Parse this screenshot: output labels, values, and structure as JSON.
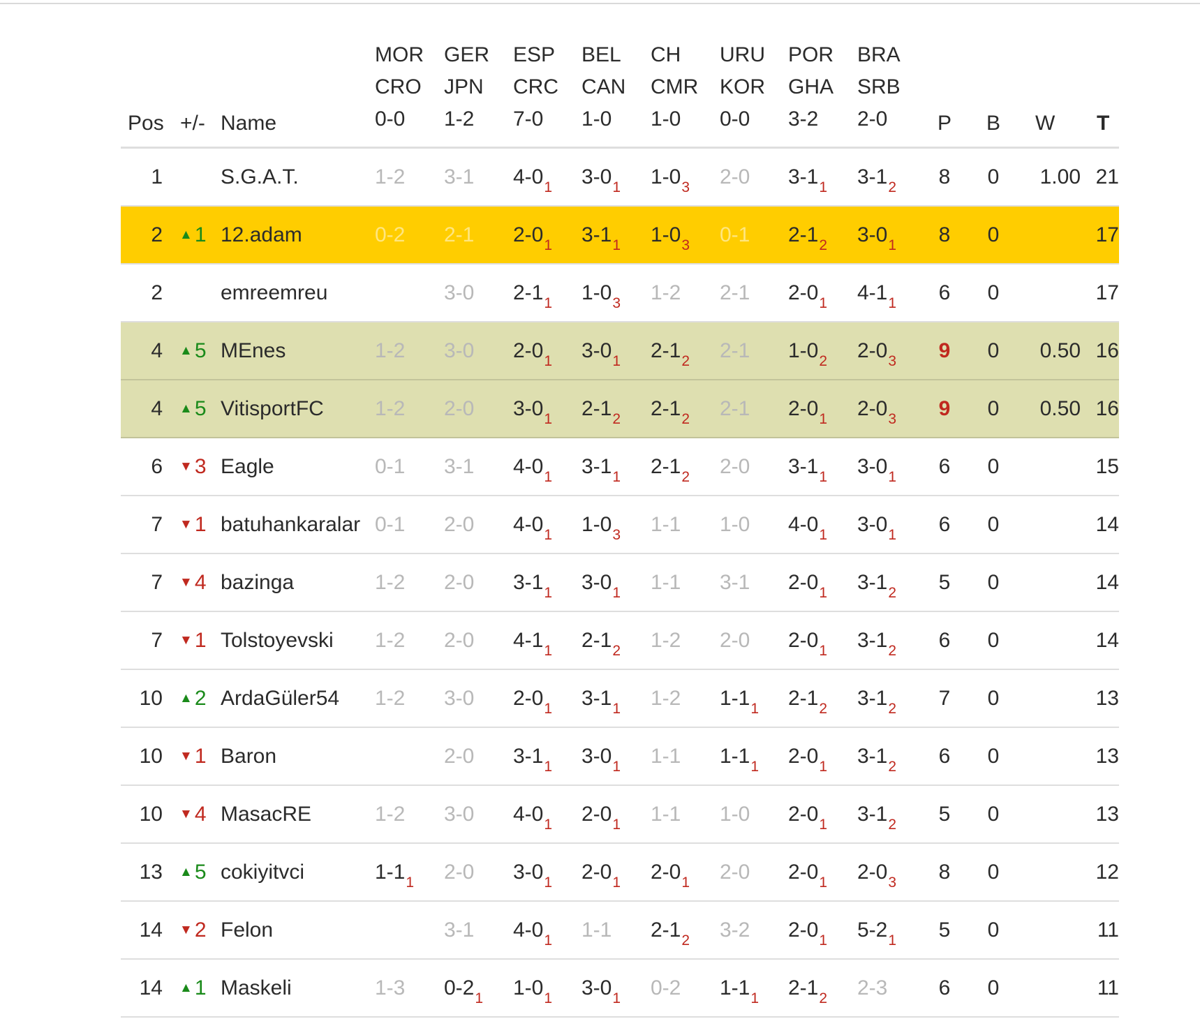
{
  "header": {
    "pos": "Pos",
    "change": "+/-",
    "name": "Name",
    "p": "P",
    "b": "B",
    "w": "W",
    "t": "T",
    "matches": [
      {
        "home": "MOR",
        "away": "CRO",
        "score": "0-0"
      },
      {
        "home": "GER",
        "away": "JPN",
        "score": "1-2"
      },
      {
        "home": "ESP",
        "away": "CRC",
        "score": "7-0"
      },
      {
        "home": "BEL",
        "away": "CAN",
        "score": "1-0"
      },
      {
        "home": "CH",
        "away": "CMR",
        "score": "1-0"
      },
      {
        "home": "URU",
        "away": "KOR",
        "score": "0-0"
      },
      {
        "home": "POR",
        "away": "GHA",
        "score": "3-2"
      },
      {
        "home": "BRA",
        "away": "SRB",
        "score": "2-0"
      }
    ]
  },
  "rows": [
    {
      "pos": "1",
      "dir": "",
      "chg": "",
      "name": "S.G.A.T.",
      "hl": "",
      "preds": [
        {
          "s": "1-2",
          "p": ""
        },
        {
          "s": "3-1",
          "p": ""
        },
        {
          "s": "4-0",
          "p": "1"
        },
        {
          "s": "3-0",
          "p": "1"
        },
        {
          "s": "1-0",
          "p": "3"
        },
        {
          "s": "2-0",
          "p": ""
        },
        {
          "s": "3-1",
          "p": "1"
        },
        {
          "s": "3-1",
          "p": "2"
        }
      ],
      "p": "8",
      "pRed": false,
      "b": "0",
      "w": "1.00",
      "t": "21"
    },
    {
      "pos": "2",
      "dir": "up",
      "chg": "1",
      "name": "12.adam",
      "hl": "gold",
      "preds": [
        {
          "s": "0-2",
          "p": ""
        },
        {
          "s": "2-1",
          "p": ""
        },
        {
          "s": "2-0",
          "p": "1"
        },
        {
          "s": "3-1",
          "p": "1"
        },
        {
          "s": "1-0",
          "p": "3"
        },
        {
          "s": "0-1",
          "p": ""
        },
        {
          "s": "2-1",
          "p": "2"
        },
        {
          "s": "3-0",
          "p": "1"
        }
      ],
      "p": "8",
      "pRed": false,
      "b": "0",
      "w": "",
      "t": "17"
    },
    {
      "pos": "2",
      "dir": "",
      "chg": "",
      "name": "emreemreu",
      "hl": "",
      "preds": [
        {
          "s": "",
          "p": ""
        },
        {
          "s": "3-0",
          "p": ""
        },
        {
          "s": "2-1",
          "p": "1"
        },
        {
          "s": "1-0",
          "p": "3"
        },
        {
          "s": "1-2",
          "p": ""
        },
        {
          "s": "2-1",
          "p": ""
        },
        {
          "s": "2-0",
          "p": "1"
        },
        {
          "s": "4-1",
          "p": "1"
        }
      ],
      "p": "6",
      "pRed": false,
      "b": "0",
      "w": "",
      "t": "17"
    },
    {
      "pos": "4",
      "dir": "up",
      "chg": "5",
      "name": "MEnes",
      "hl": "olive",
      "preds": [
        {
          "s": "1-2",
          "p": ""
        },
        {
          "s": "3-0",
          "p": ""
        },
        {
          "s": "2-0",
          "p": "1"
        },
        {
          "s": "3-0",
          "p": "1"
        },
        {
          "s": "2-1",
          "p": "2"
        },
        {
          "s": "2-1",
          "p": ""
        },
        {
          "s": "1-0",
          "p": "2"
        },
        {
          "s": "2-0",
          "p": "3"
        }
      ],
      "p": "9",
      "pRed": true,
      "b": "0",
      "w": "0.50",
      "t": "16"
    },
    {
      "pos": "4",
      "dir": "up",
      "chg": "5",
      "name": "VitisportFC",
      "hl": "olive",
      "preds": [
        {
          "s": "1-2",
          "p": ""
        },
        {
          "s": "2-0",
          "p": ""
        },
        {
          "s": "3-0",
          "p": "1"
        },
        {
          "s": "2-1",
          "p": "2"
        },
        {
          "s": "2-1",
          "p": "2"
        },
        {
          "s": "2-1",
          "p": ""
        },
        {
          "s": "2-0",
          "p": "1"
        },
        {
          "s": "2-0",
          "p": "3"
        }
      ],
      "p": "9",
      "pRed": true,
      "b": "0",
      "w": "0.50",
      "t": "16"
    },
    {
      "pos": "6",
      "dir": "down",
      "chg": "3",
      "name": "Eagle",
      "hl": "",
      "preds": [
        {
          "s": "0-1",
          "p": ""
        },
        {
          "s": "3-1",
          "p": ""
        },
        {
          "s": "4-0",
          "p": "1"
        },
        {
          "s": "3-1",
          "p": "1"
        },
        {
          "s": "2-1",
          "p": "2"
        },
        {
          "s": "2-0",
          "p": ""
        },
        {
          "s": "3-1",
          "p": "1"
        },
        {
          "s": "3-0",
          "p": "1"
        }
      ],
      "p": "6",
      "pRed": false,
      "b": "0",
      "w": "",
      "t": "15"
    },
    {
      "pos": "7",
      "dir": "down",
      "chg": "1",
      "name": "batuhankaralar",
      "hl": "",
      "preds": [
        {
          "s": "0-1",
          "p": ""
        },
        {
          "s": "2-0",
          "p": ""
        },
        {
          "s": "4-0",
          "p": "1"
        },
        {
          "s": "1-0",
          "p": "3"
        },
        {
          "s": "1-1",
          "p": ""
        },
        {
          "s": "1-0",
          "p": ""
        },
        {
          "s": "4-0",
          "p": "1"
        },
        {
          "s": "3-0",
          "p": "1"
        }
      ],
      "p": "6",
      "pRed": false,
      "b": "0",
      "w": "",
      "t": "14"
    },
    {
      "pos": "7",
      "dir": "down",
      "chg": "4",
      "name": "bazinga",
      "hl": "",
      "preds": [
        {
          "s": "1-2",
          "p": ""
        },
        {
          "s": "2-0",
          "p": ""
        },
        {
          "s": "3-1",
          "p": "1"
        },
        {
          "s": "3-0",
          "p": "1"
        },
        {
          "s": "1-1",
          "p": ""
        },
        {
          "s": "3-1",
          "p": ""
        },
        {
          "s": "2-0",
          "p": "1"
        },
        {
          "s": "3-1",
          "p": "2"
        }
      ],
      "p": "5",
      "pRed": false,
      "b": "0",
      "w": "",
      "t": "14"
    },
    {
      "pos": "7",
      "dir": "down",
      "chg": "1",
      "name": "Tolstoyevski",
      "hl": "",
      "preds": [
        {
          "s": "1-2",
          "p": ""
        },
        {
          "s": "2-0",
          "p": ""
        },
        {
          "s": "4-1",
          "p": "1"
        },
        {
          "s": "2-1",
          "p": "2"
        },
        {
          "s": "1-2",
          "p": ""
        },
        {
          "s": "2-0",
          "p": ""
        },
        {
          "s": "2-0",
          "p": "1"
        },
        {
          "s": "3-1",
          "p": "2"
        }
      ],
      "p": "6",
      "pRed": false,
      "b": "0",
      "w": "",
      "t": "14"
    },
    {
      "pos": "10",
      "dir": "up",
      "chg": "2",
      "name": "ArdaGüler54",
      "hl": "",
      "preds": [
        {
          "s": "1-2",
          "p": ""
        },
        {
          "s": "3-0",
          "p": ""
        },
        {
          "s": "2-0",
          "p": "1"
        },
        {
          "s": "3-1",
          "p": "1"
        },
        {
          "s": "1-2",
          "p": ""
        },
        {
          "s": "1-1",
          "p": "1"
        },
        {
          "s": "2-1",
          "p": "2"
        },
        {
          "s": "3-1",
          "p": "2"
        }
      ],
      "p": "7",
      "pRed": false,
      "b": "0",
      "w": "",
      "t": "13"
    },
    {
      "pos": "10",
      "dir": "down",
      "chg": "1",
      "name": "Baron",
      "hl": "",
      "preds": [
        {
          "s": "",
          "p": ""
        },
        {
          "s": "2-0",
          "p": ""
        },
        {
          "s": "3-1",
          "p": "1"
        },
        {
          "s": "3-0",
          "p": "1"
        },
        {
          "s": "1-1",
          "p": ""
        },
        {
          "s": "1-1",
          "p": "1"
        },
        {
          "s": "2-0",
          "p": "1"
        },
        {
          "s": "3-1",
          "p": "2"
        }
      ],
      "p": "6",
      "pRed": false,
      "b": "0",
      "w": "",
      "t": "13"
    },
    {
      "pos": "10",
      "dir": "down",
      "chg": "4",
      "name": "MasacRE",
      "hl": "",
      "preds": [
        {
          "s": "1-2",
          "p": ""
        },
        {
          "s": "3-0",
          "p": ""
        },
        {
          "s": "4-0",
          "p": "1"
        },
        {
          "s": "2-0",
          "p": "1"
        },
        {
          "s": "1-1",
          "p": ""
        },
        {
          "s": "1-0",
          "p": ""
        },
        {
          "s": "2-0",
          "p": "1"
        },
        {
          "s": "3-1",
          "p": "2"
        }
      ],
      "p": "5",
      "pRed": false,
      "b": "0",
      "w": "",
      "t": "13"
    },
    {
      "pos": "13",
      "dir": "up",
      "chg": "5",
      "name": "cokiyitvci",
      "hl": "",
      "preds": [
        {
          "s": "1-1",
          "p": "1"
        },
        {
          "s": "2-0",
          "p": ""
        },
        {
          "s": "3-0",
          "p": "1"
        },
        {
          "s": "2-0",
          "p": "1"
        },
        {
          "s": "2-0",
          "p": "1"
        },
        {
          "s": "2-0",
          "p": ""
        },
        {
          "s": "2-0",
          "p": "1"
        },
        {
          "s": "2-0",
          "p": "3"
        }
      ],
      "p": "8",
      "pRed": false,
      "b": "0",
      "w": "",
      "t": "12"
    },
    {
      "pos": "14",
      "dir": "down",
      "chg": "2",
      "name": "Felon",
      "hl": "",
      "preds": [
        {
          "s": "",
          "p": ""
        },
        {
          "s": "3-1",
          "p": ""
        },
        {
          "s": "4-0",
          "p": "1"
        },
        {
          "s": "1-1",
          "p": ""
        },
        {
          "s": "2-1",
          "p": "2"
        },
        {
          "s": "3-2",
          "p": ""
        },
        {
          "s": "2-0",
          "p": "1"
        },
        {
          "s": "5-2",
          "p": "1"
        }
      ],
      "p": "5",
      "pRed": false,
      "b": "0",
      "w": "",
      "t": "11"
    },
    {
      "pos": "14",
      "dir": "up",
      "chg": "1",
      "name": "Maskeli",
      "hl": "",
      "preds": [
        {
          "s": "1-3",
          "p": ""
        },
        {
          "s": "0-2",
          "p": "1"
        },
        {
          "s": "1-0",
          "p": "1"
        },
        {
          "s": "3-0",
          "p": "1"
        },
        {
          "s": "0-2",
          "p": ""
        },
        {
          "s": "1-1",
          "p": "1"
        },
        {
          "s": "2-1",
          "p": "2"
        },
        {
          "s": "2-3",
          "p": ""
        }
      ],
      "p": "6",
      "pRed": false,
      "b": "0",
      "w": "",
      "t": "11"
    }
  ]
}
